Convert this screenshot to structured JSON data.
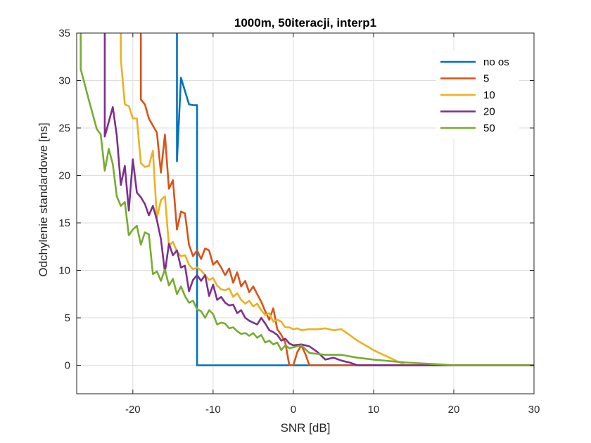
{
  "chart_data": {
    "type": "line",
    "title": "1000m, 50iteracji, interp1",
    "xlabel": "SNR [dB]",
    "ylabel": "Odchylenie standardowe [ns]",
    "xlim": [
      -27,
      30
    ],
    "ylim": [
      -3,
      35
    ],
    "xticks": [
      -20,
      -10,
      0,
      10,
      20,
      30
    ],
    "yticks": [
      0,
      5,
      10,
      15,
      20,
      25,
      30,
      35
    ],
    "xtick_labels": [
      "-20",
      "-10",
      "0",
      "10",
      "20",
      "30"
    ],
    "ytick_labels": [
      "0",
      "5",
      "10",
      "15",
      "20",
      "25",
      "30",
      "35"
    ],
    "grid": true,
    "legend_position": "top-right",
    "series": [
      {
        "name": "no os",
        "color": "#0072BD",
        "points": [
          [
            -14.5,
            35
          ],
          [
            -14.5,
            21.5
          ],
          [
            -14,
            30.3
          ],
          [
            -13,
            27.5
          ],
          [
            -12.5,
            27.4
          ],
          [
            -12,
            27.4
          ],
          [
            -12,
            0
          ],
          [
            30,
            0
          ]
        ]
      },
      {
        "name": "5",
        "color": "#D95319",
        "points": [
          [
            -19,
            35
          ],
          [
            -19,
            28
          ],
          [
            -18.5,
            27.5
          ],
          [
            -18,
            26
          ],
          [
            -17,
            24.5
          ],
          [
            -16.5,
            20.3
          ],
          [
            -16,
            24.3
          ],
          [
            -15.5,
            18.6
          ],
          [
            -15,
            19.5
          ],
          [
            -14.5,
            14.3
          ],
          [
            -14,
            16.2
          ],
          [
            -13.5,
            16
          ],
          [
            -13,
            12.7
          ],
          [
            -12.5,
            11.5
          ],
          [
            -12,
            12.1
          ],
          [
            -11.5,
            11.2
          ],
          [
            -11,
            12.3
          ],
          [
            -10.5,
            12.1
          ],
          [
            -10,
            10.6
          ],
          [
            -9.5,
            11
          ],
          [
            -9,
            10.3
          ],
          [
            -8.5,
            9.5
          ],
          [
            -8,
            10.2
          ],
          [
            -7.5,
            8.7
          ],
          [
            -7,
            9.8
          ],
          [
            -6.5,
            8.3
          ],
          [
            -6,
            8.9
          ],
          [
            -5.5,
            7.7
          ],
          [
            -5,
            8.3
          ],
          [
            -4.5,
            7.5
          ],
          [
            -4,
            6.7
          ],
          [
            -3.5,
            5.7
          ],
          [
            -3,
            4.8
          ],
          [
            -2.5,
            6
          ],
          [
            -2,
            3.8
          ],
          [
            -1.5,
            3.2
          ],
          [
            -1,
            2.4
          ],
          [
            -0.5,
            0
          ],
          [
            0,
            0
          ],
          [
            0.5,
            1.4
          ],
          [
            1,
            2.1
          ],
          [
            1.5,
            1.2
          ],
          [
            2,
            0
          ],
          [
            30,
            0
          ]
        ]
      },
      {
        "name": "10",
        "color": "#EDB120",
        "points": [
          [
            -21.5,
            35
          ],
          [
            -21.5,
            32.3
          ],
          [
            -21,
            27.5
          ],
          [
            -20.5,
            27.3
          ],
          [
            -20,
            26
          ],
          [
            -19.5,
            26
          ],
          [
            -19,
            21.3
          ],
          [
            -18.5,
            20.9
          ],
          [
            -18,
            21
          ],
          [
            -17.5,
            22.6
          ],
          [
            -17,
            15.5
          ],
          [
            -16.5,
            17.4
          ],
          [
            -16,
            17.8
          ],
          [
            -15.5,
            12.6
          ],
          [
            -15,
            13
          ],
          [
            -14.5,
            12
          ],
          [
            -14,
            11.5
          ],
          [
            -13.5,
            11.6
          ],
          [
            -13,
            10.6
          ],
          [
            -12.5,
            10.1
          ],
          [
            -12,
            10.3
          ],
          [
            -11.5,
            10
          ],
          [
            -11,
            9.5
          ],
          [
            -10.5,
            9
          ],
          [
            -10,
            9.2
          ],
          [
            -9.5,
            8.4
          ],
          [
            -9,
            8
          ],
          [
            -8.5,
            7.9
          ],
          [
            -8,
            8.1
          ],
          [
            -7.5,
            7.2
          ],
          [
            -7,
            7.6
          ],
          [
            -6.5,
            6.9
          ],
          [
            -6,
            6.5
          ],
          [
            -5.5,
            6.8
          ],
          [
            -5,
            6.2
          ],
          [
            -4.5,
            6.5
          ],
          [
            -4,
            5.8
          ],
          [
            -3.5,
            5.3
          ],
          [
            -3,
            5.5
          ],
          [
            -2.5,
            4.6
          ],
          [
            -2,
            4.8
          ],
          [
            -1.5,
            4.6
          ],
          [
            -1,
            4
          ],
          [
            -0.5,
            4
          ],
          [
            0,
            3.8
          ],
          [
            0.5,
            3.9
          ],
          [
            1,
            3.7
          ],
          [
            2,
            3.8
          ],
          [
            3,
            3.8
          ],
          [
            4,
            3.9
          ],
          [
            5,
            3.7
          ],
          [
            6,
            3.8
          ],
          [
            8,
            2.6
          ],
          [
            10,
            1.6
          ],
          [
            12,
            0.8
          ],
          [
            14,
            0
          ],
          [
            30,
            0
          ]
        ]
      },
      {
        "name": "20",
        "color": "#7E2F8E",
        "points": [
          [
            -23.5,
            35
          ],
          [
            -23.5,
            24.1
          ],
          [
            -22.5,
            27.2
          ],
          [
            -22,
            24.2
          ],
          [
            -21.5,
            19
          ],
          [
            -21,
            21
          ],
          [
            -20.5,
            16.3
          ],
          [
            -20,
            21.7
          ],
          [
            -19.5,
            18.2
          ],
          [
            -19,
            17.7
          ],
          [
            -18.5,
            17
          ],
          [
            -18,
            15.8
          ],
          [
            -17.5,
            16.8
          ],
          [
            -17,
            15.3
          ],
          [
            -16.5,
            13.3
          ],
          [
            -16,
            9.8
          ],
          [
            -15.5,
            12.8
          ],
          [
            -15,
            11.6
          ],
          [
            -14.5,
            12.1
          ],
          [
            -14,
            10.3
          ],
          [
            -13.5,
            10.5
          ],
          [
            -13,
            7.8
          ],
          [
            -12.5,
            9
          ],
          [
            -12,
            9.5
          ],
          [
            -11.5,
            8.9
          ],
          [
            -11,
            9.5
          ],
          [
            -10.5,
            7.3
          ],
          [
            -10,
            8.5
          ],
          [
            -9.5,
            6.9
          ],
          [
            -9,
            7.2
          ],
          [
            -8.5,
            6.6
          ],
          [
            -8,
            6.3
          ],
          [
            -7.5,
            6.4
          ],
          [
            -7,
            5.5
          ],
          [
            -6.5,
            5.8
          ],
          [
            -6,
            5
          ],
          [
            -5.5,
            4.7
          ],
          [
            -5,
            4.5
          ],
          [
            -4.5,
            4.3
          ],
          [
            -4,
            5
          ],
          [
            -3.5,
            4.4
          ],
          [
            -3,
            3.7
          ],
          [
            -2.5,
            3.5
          ],
          [
            -2,
            3.2
          ],
          [
            -1.5,
            2.6
          ],
          [
            -1,
            2.8
          ],
          [
            -0.5,
            2.3
          ],
          [
            0,
            2.1
          ],
          [
            1,
            2.2
          ],
          [
            2,
            2
          ],
          [
            3,
            1.4
          ],
          [
            4,
            0.6
          ],
          [
            5,
            0.8
          ],
          [
            6,
            0.5
          ],
          [
            7,
            0.3
          ],
          [
            8,
            0
          ],
          [
            30,
            0
          ]
        ]
      },
      {
        "name": "50",
        "color": "#77AC30",
        "points": [
          [
            -26.5,
            35
          ],
          [
            -26.5,
            31.2
          ],
          [
            -25.5,
            28
          ],
          [
            -24.5,
            24.9
          ],
          [
            -24,
            24.3
          ],
          [
            -23.5,
            20.5
          ],
          [
            -23,
            22.8
          ],
          [
            -22.5,
            21.2
          ],
          [
            -22,
            17.8
          ],
          [
            -21.5,
            16.8
          ],
          [
            -21,
            17.2
          ],
          [
            -20.5,
            13.7
          ],
          [
            -20,
            14.3
          ],
          [
            -19.5,
            14.7
          ],
          [
            -19,
            12.7
          ],
          [
            -18.5,
            14
          ],
          [
            -18,
            13.8
          ],
          [
            -17.5,
            9.6
          ],
          [
            -17,
            9.9
          ],
          [
            -16.5,
            8.9
          ],
          [
            -16,
            10.1
          ],
          [
            -15.5,
            8.4
          ],
          [
            -15,
            9.1
          ],
          [
            -14.5,
            7.5
          ],
          [
            -14,
            8.3
          ],
          [
            -13.5,
            7.3
          ],
          [
            -13,
            6.6
          ],
          [
            -12.5,
            6.8
          ],
          [
            -12,
            5.9
          ],
          [
            -11.5,
            5.7
          ],
          [
            -11,
            5
          ],
          [
            -10.5,
            5.8
          ],
          [
            -10,
            5.4
          ],
          [
            -9.5,
            4.3
          ],
          [
            -9,
            4.5
          ],
          [
            -8.5,
            4.4
          ],
          [
            -8,
            3.9
          ],
          [
            -7.5,
            4
          ],
          [
            -7,
            3.6
          ],
          [
            -6.5,
            3.3
          ],
          [
            -6,
            3.4
          ],
          [
            -5.5,
            3.1
          ],
          [
            -5,
            3.4
          ],
          [
            -4.5,
            2.9
          ],
          [
            -4,
            3.2
          ],
          [
            -3.5,
            2.4
          ],
          [
            -3,
            2.6
          ],
          [
            -2.5,
            2.2
          ],
          [
            -2,
            2.4
          ],
          [
            -1.5,
            1.6
          ],
          [
            -1,
            2.1
          ],
          [
            -0.5,
            1.8
          ],
          [
            0,
            1.9
          ],
          [
            1,
            2.1
          ],
          [
            2,
            1.3
          ],
          [
            3,
            1.2
          ],
          [
            4,
            1.1
          ],
          [
            5,
            1.1
          ],
          [
            6,
            1.1
          ],
          [
            8,
            0.8
          ],
          [
            10,
            0.6
          ],
          [
            14,
            0.3
          ],
          [
            18,
            0.1
          ],
          [
            20,
            0
          ],
          [
            30,
            0
          ]
        ]
      }
    ]
  }
}
